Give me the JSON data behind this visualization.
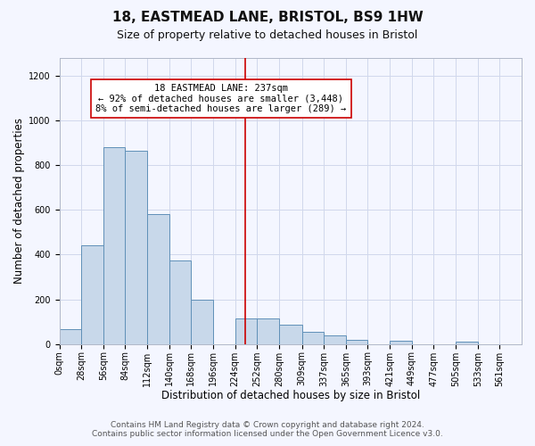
{
  "title": "18, EASTMEAD LANE, BRISTOL, BS9 1HW",
  "subtitle": "Size of property relative to detached houses in Bristol",
  "xlabel": "Distribution of detached houses by size in Bristol",
  "ylabel": "Number of detached properties",
  "bar_left_edges": [
    0,
    28,
    56,
    84,
    112,
    140,
    168,
    196,
    224,
    252,
    280,
    309,
    337,
    365,
    393,
    421,
    449,
    477,
    505,
    533
  ],
  "bar_heights": [
    65,
    440,
    880,
    865,
    580,
    375,
    200,
    0,
    115,
    115,
    85,
    55,
    40,
    20,
    0,
    15,
    0,
    0,
    10,
    0
  ],
  "bar_color": "#c8d8ea",
  "bar_edge_color": "#6090b8",
  "vline_x": 237,
  "vline_color": "#cc0000",
  "annotation_text": "18 EASTMEAD LANE: 237sqm\n← 92% of detached houses are smaller (3,448)\n8% of semi-detached houses are larger (289) →",
  "annotation_box_color": "#ffffff",
  "annotation_box_edge": "#cc0000",
  "ylim": [
    0,
    1280
  ],
  "yticks": [
    0,
    200,
    400,
    600,
    800,
    1000,
    1200
  ],
  "xtick_labels": [
    "0sqm",
    "28sqm",
    "56sqm",
    "84sqm",
    "112sqm",
    "140sqm",
    "168sqm",
    "196sqm",
    "224sqm",
    "252sqm",
    "280sqm",
    "309sqm",
    "337sqm",
    "365sqm",
    "393sqm",
    "421sqm",
    "449sqm",
    "477sqm",
    "505sqm",
    "533sqm",
    "561sqm"
  ],
  "xtick_positions": [
    0,
    28,
    56,
    84,
    112,
    140,
    168,
    196,
    224,
    252,
    280,
    309,
    337,
    365,
    393,
    421,
    449,
    477,
    505,
    533,
    561
  ],
  "footer_line1": "Contains HM Land Registry data © Crown copyright and database right 2024.",
  "footer_line2": "Contains public sector information licensed under the Open Government Licence v3.0.",
  "bg_color": "#f4f6ff",
  "grid_color": "#d0d8ec",
  "title_fontsize": 11,
  "subtitle_fontsize": 9,
  "axis_label_fontsize": 8.5,
  "tick_fontsize": 7,
  "annotation_fontsize": 7.5,
  "footer_fontsize": 6.5
}
